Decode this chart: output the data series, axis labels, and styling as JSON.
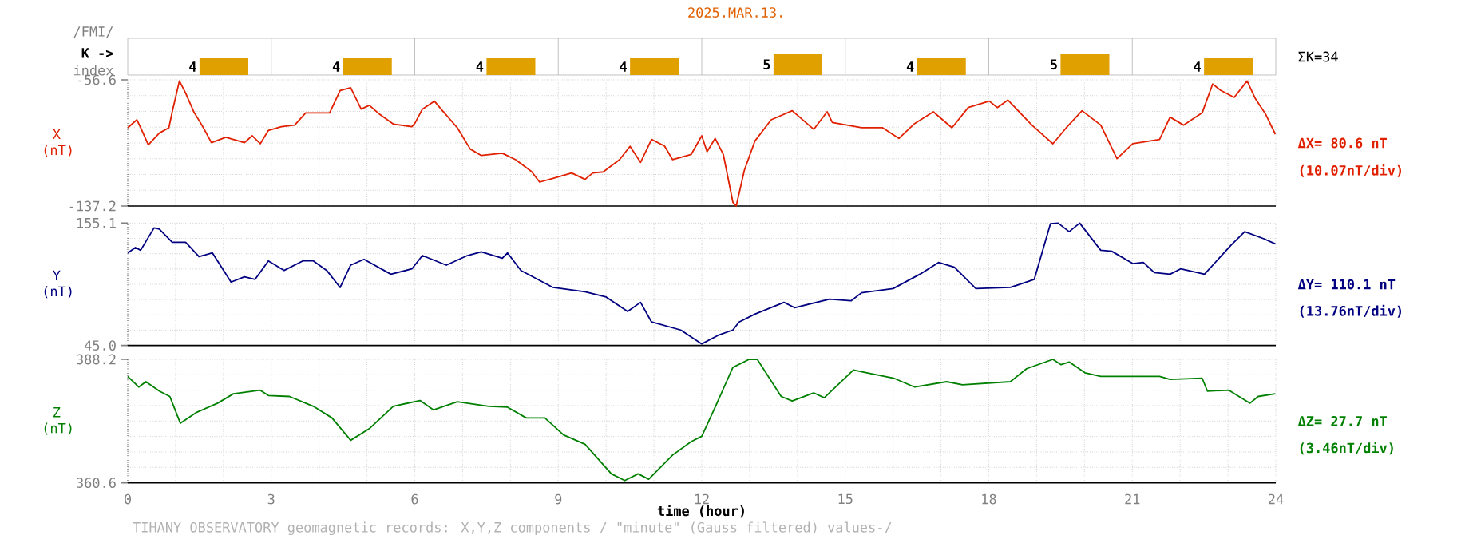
{
  "chart_data": [
    {
      "type": "bar",
      "title": "2025.MAR.13.",
      "ylabel": "K ->",
      "annotations": [
        "/FMI/",
        "index",
        "ΣK=34"
      ],
      "categories": [
        null,
        null,
        null,
        null,
        null,
        null,
        null,
        null
      ],
      "values": [
        4,
        4,
        4,
        4,
        5,
        4,
        5,
        4
      ],
      "color": "#e0a000",
      "data_labels": true,
      "tick_labels": false,
      "grid": "x"
    },
    {
      "type": "line",
      "ylabel": "X (nT)",
      "annotations": [
        "ΔX= 80.6 nT",
        "(10.07nT/div)"
      ],
      "color": "#e02000",
      "xlim": [
        0,
        24
      ],
      "xticks": [
        0,
        3,
        6,
        9,
        12,
        15,
        18,
        21,
        24
      ],
      "ylim": [
        -137.2,
        -56.6
      ],
      "yticks": [
        -137.2,
        -56.6
      ],
      "grid": true,
      "tick_labels": "y",
      "x": [
        0,
        0.19,
        0.27,
        0.43,
        0.66,
        0.86,
        0.93,
        1.08,
        1.21,
        1.38,
        1.55,
        1.75,
        2.05,
        2.44,
        2.6,
        2.77,
        2.94,
        3.21,
        3.49,
        3.72,
        4.22,
        4.44,
        4.66,
        4.88,
        5.05,
        5.27,
        5.55,
        5.94,
        6.0,
        6.16,
        6.41,
        6.55,
        6.89,
        7.16,
        7.39,
        7.83,
        8.11,
        8.44,
        8.61,
        8.89,
        9.28,
        9.56,
        9.72,
        9.94,
        10.28,
        10.5,
        10.72,
        10.95,
        11.22,
        11.39,
        11.78,
        12.0,
        12.11,
        12.28,
        12.45,
        12.65,
        12.72,
        12.89,
        13.11,
        13.45,
        13.89,
        14.34,
        14.62,
        14.73,
        15.34,
        15.78,
        16.12,
        16.45,
        16.84,
        17.23,
        17.57,
        18.01,
        18.18,
        18.4,
        18.9,
        19.34,
        19.62,
        19.95,
        20.34,
        20.68,
        21.01,
        21.57,
        21.79,
        22.07,
        22.46,
        22.68,
        22.85,
        23.13,
        23.4,
        23.57,
        23.79,
        23.99
      ],
      "values": [
        -87.2,
        -82.1,
        -87.2,
        -98.1,
        -90.6,
        -87.2,
        -77.0,
        -57.3,
        -65.1,
        -77.0,
        -85.5,
        -96.7,
        -93.3,
        -96.7,
        -92.3,
        -97.4,
        -88.9,
        -86.5,
        -85.5,
        -77.7,
        -77.7,
        -63.4,
        -61.7,
        -75.3,
        -72.9,
        -78.7,
        -84.8,
        -86.5,
        -84.5,
        -75.3,
        -70.2,
        -75.3,
        -87.2,
        -100.8,
        -104.9,
        -103.5,
        -107.6,
        -115.1,
        -121.9,
        -119.5,
        -116.1,
        -120.2,
        -116.1,
        -115.4,
        -107.6,
        -99.1,
        -109.3,
        -94.7,
        -98.8,
        -107.6,
        -104.2,
        -92.3,
        -102.5,
        -94.0,
        -104.2,
        -134.8,
        -137.2,
        -114.4,
        -95.7,
        -82.1,
        -76.3,
        -88.2,
        -77.0,
        -83.8,
        -87.2,
        -87.2,
        -94.0,
        -84.5,
        -77.0,
        -87.2,
        -74.3,
        -70.2,
        -74.3,
        -69.5,
        -85.5,
        -97.4,
        -87.2,
        -76.3,
        -85.5,
        -106.9,
        -97.4,
        -94.7,
        -80.4,
        -85.5,
        -77.7,
        -59.3,
        -63.4,
        -67.8,
        -57.3,
        -68.5,
        -78.7,
        -91.3
      ]
    },
    {
      "type": "line",
      "ylabel": "Y (nT)",
      "annotations": [
        "ΔY= 110.1 nT",
        "(13.76nT/div)"
      ],
      "color": "#000080",
      "xlim": [
        0,
        24
      ],
      "xticks": [
        0,
        3,
        6,
        9,
        12,
        15,
        18,
        21,
        24
      ],
      "ylim": [
        45.0,
        155.1
      ],
      "yticks": [
        {
          "value": 45.0,
          "label": "45.0"
        },
        155.1
      ],
      "grid": true,
      "tick_labels": "y",
      "x": [
        0,
        0.16,
        0.27,
        0.55,
        0.66,
        0.93,
        1.21,
        1.49,
        1.77,
        2.16,
        2.44,
        2.66,
        2.94,
        3.27,
        3.66,
        3.88,
        4.16,
        4.44,
        4.66,
        4.94,
        5.5,
        5.94,
        6.16,
        6.66,
        7.1,
        7.39,
        7.83,
        7.94,
        8.22,
        8.89,
        9.56,
        10.0,
        10.45,
        10.72,
        10.95,
        11.56,
        12.0,
        12.34,
        12.65,
        12.78,
        13.11,
        13.72,
        13.94,
        14.67,
        15.12,
        15.34,
        16.0,
        16.56,
        16.95,
        17.28,
        17.73,
        18.45,
        18.95,
        19.29,
        19.45,
        19.68,
        19.9,
        20.34,
        20.57,
        21.01,
        21.23,
        21.46,
        21.79,
        22.01,
        22.51,
        23.07,
        23.35,
        23.74,
        23.99
      ],
      "values": [
        128.3,
        133.1,
        130.7,
        150.8,
        149.8,
        137.9,
        137.9,
        124.9,
        128.3,
        102.0,
        106.8,
        104.4,
        121.1,
        112.5,
        121.1,
        121.1,
        112.5,
        97.2,
        117.3,
        122.5,
        109.1,
        113.9,
        125.9,
        117.3,
        125.9,
        129.3,
        123.5,
        128.3,
        112.5,
        97.2,
        93.3,
        88.6,
        75.6,
        83.8,
        66.1,
        58.9,
        46.4,
        54.1,
        58.9,
        66.1,
        73.2,
        83.8,
        79.0,
        86.6,
        85.2,
        92.4,
        96.2,
        109.1,
        119.7,
        115.4,
        96.2,
        97.2,
        104.4,
        154.6,
        155.1,
        147.4,
        155.1,
        130.7,
        129.8,
        118.7,
        119.7,
        110.6,
        109.1,
        113.9,
        109.1,
        135.5,
        147.4,
        141.2,
        136.4
      ]
    },
    {
      "type": "line",
      "ylabel": "Z (nT)",
      "xlabel": "time (hour)",
      "annotations": [
        "ΔZ= 27.7 nT",
        "(3.46nT/div)",
        "TIHANY OBSERVATORY   geomagnetic records:  X,Y,Z  components   / \"minute\" (Gauss filtered) values-/"
      ],
      "color": "#008000",
      "xlim": [
        0,
        24
      ],
      "xticks": [
        0,
        3,
        6,
        9,
        12,
        15,
        18,
        21,
        24
      ],
      "ylim": [
        360.6,
        388.2
      ],
      "yticks": [
        360.6,
        388.2
      ],
      "grid": true,
      "x": [
        0,
        0.23,
        0.38,
        0.66,
        0.88,
        1.1,
        1.43,
        1.88,
        2.21,
        2.77,
        2.94,
        3.38,
        3.88,
        4.27,
        4.66,
        5.05,
        5.55,
        6.11,
        6.39,
        6.89,
        7.55,
        7.94,
        8.33,
        8.72,
        9.11,
        9.56,
        10.11,
        10.39,
        10.67,
        10.89,
        11.39,
        11.78,
        12.0,
        12.28,
        12.5,
        12.65,
        12.99,
        13.16,
        13.66,
        13.89,
        14.34,
        14.56,
        15.17,
        15.45,
        16.01,
        16.45,
        17.12,
        17.45,
        18.45,
        18.79,
        19.34,
        19.51,
        19.68,
        20.01,
        20.34,
        20.79,
        21.57,
        21.79,
        22.46,
        22.57,
        23.02,
        23.46,
        23.63,
        23.99
      ],
      "values": [
        384.4,
        382.0,
        383.2,
        381.1,
        379.9,
        373.9,
        376.3,
        378.4,
        380.5,
        381.3,
        380.1,
        379.9,
        377.7,
        375.1,
        370.1,
        372.7,
        377.7,
        379.0,
        376.9,
        378.7,
        377.7,
        377.5,
        375.1,
        375.1,
        371.3,
        369.2,
        362.6,
        361.1,
        362.6,
        361.4,
        366.8,
        369.8,
        371.0,
        377.5,
        382.8,
        386.4,
        388.2,
        388.2,
        379.9,
        378.9,
        380.7,
        379.6,
        385.8,
        385.2,
        384.0,
        382.0,
        383.2,
        382.5,
        383.2,
        386.1,
        388.2,
        387.0,
        387.6,
        385.2,
        384.4,
        384.4,
        384.4,
        383.7,
        384.0,
        381.1,
        381.3,
        378.4,
        379.9,
        380.5
      ]
    }
  ]
}
